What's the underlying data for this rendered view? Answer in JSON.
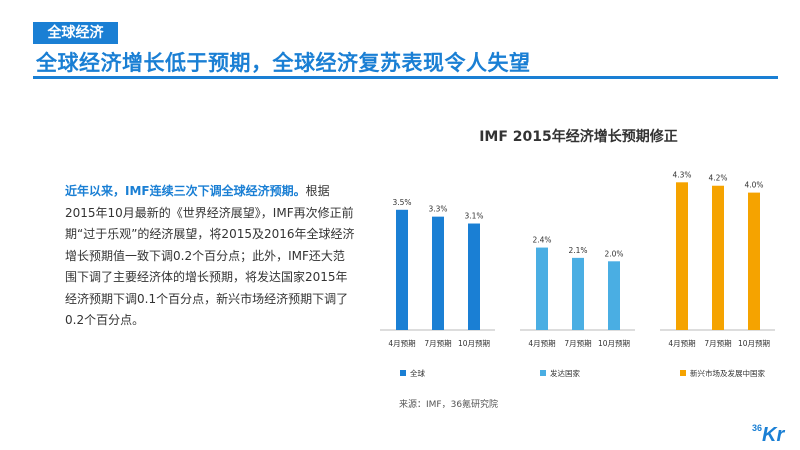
{
  "section_tag": "全球经济",
  "headline": "全球经济增长低于预期，全球经济复苏表现令人失望",
  "body": {
    "lead": "近年以来，IMF连续三次下调全球经济预期。",
    "rest": "根据2015年10月最新的《世界经济展望》，IMF再次修正前期“过于乐观”的经济展望，将2015及2016年全球经济增长预期值一致下调0.2个百分点；此外，IMF还大范围下调了主要经济体的增长预期，将发达国家2015年经济预期下调0.1个百分点，新兴市场经济预期下调了0.2个百分点。"
  },
  "source": "来源：IMF，36氪研究院",
  "logo": {
    "sup": "36",
    "main": "Kr"
  },
  "colors": {
    "accent": "#1a7fd4"
  },
  "chart_data": {
    "type": "bar",
    "title": "IMF 2015年经济增长预期修正",
    "categories": [
      "4月预期",
      "7月预期",
      "10月预期"
    ],
    "series": [
      {
        "name": "全球",
        "values": [
          3.5,
          3.3,
          3.1
        ],
        "color": "#1a7fd4"
      },
      {
        "name": "发达国家",
        "values": [
          2.4,
          2.1,
          2.0
        ],
        "color": "#4aaee3"
      },
      {
        "name": "新兴市场及发展中国家",
        "values": [
          4.3,
          4.2,
          4.0
        ],
        "color": "#f5a300"
      }
    ],
    "value_suffix": "%",
    "ylim": [
      0,
      4.6
    ],
    "grid": false,
    "legend_position": "bottom"
  }
}
